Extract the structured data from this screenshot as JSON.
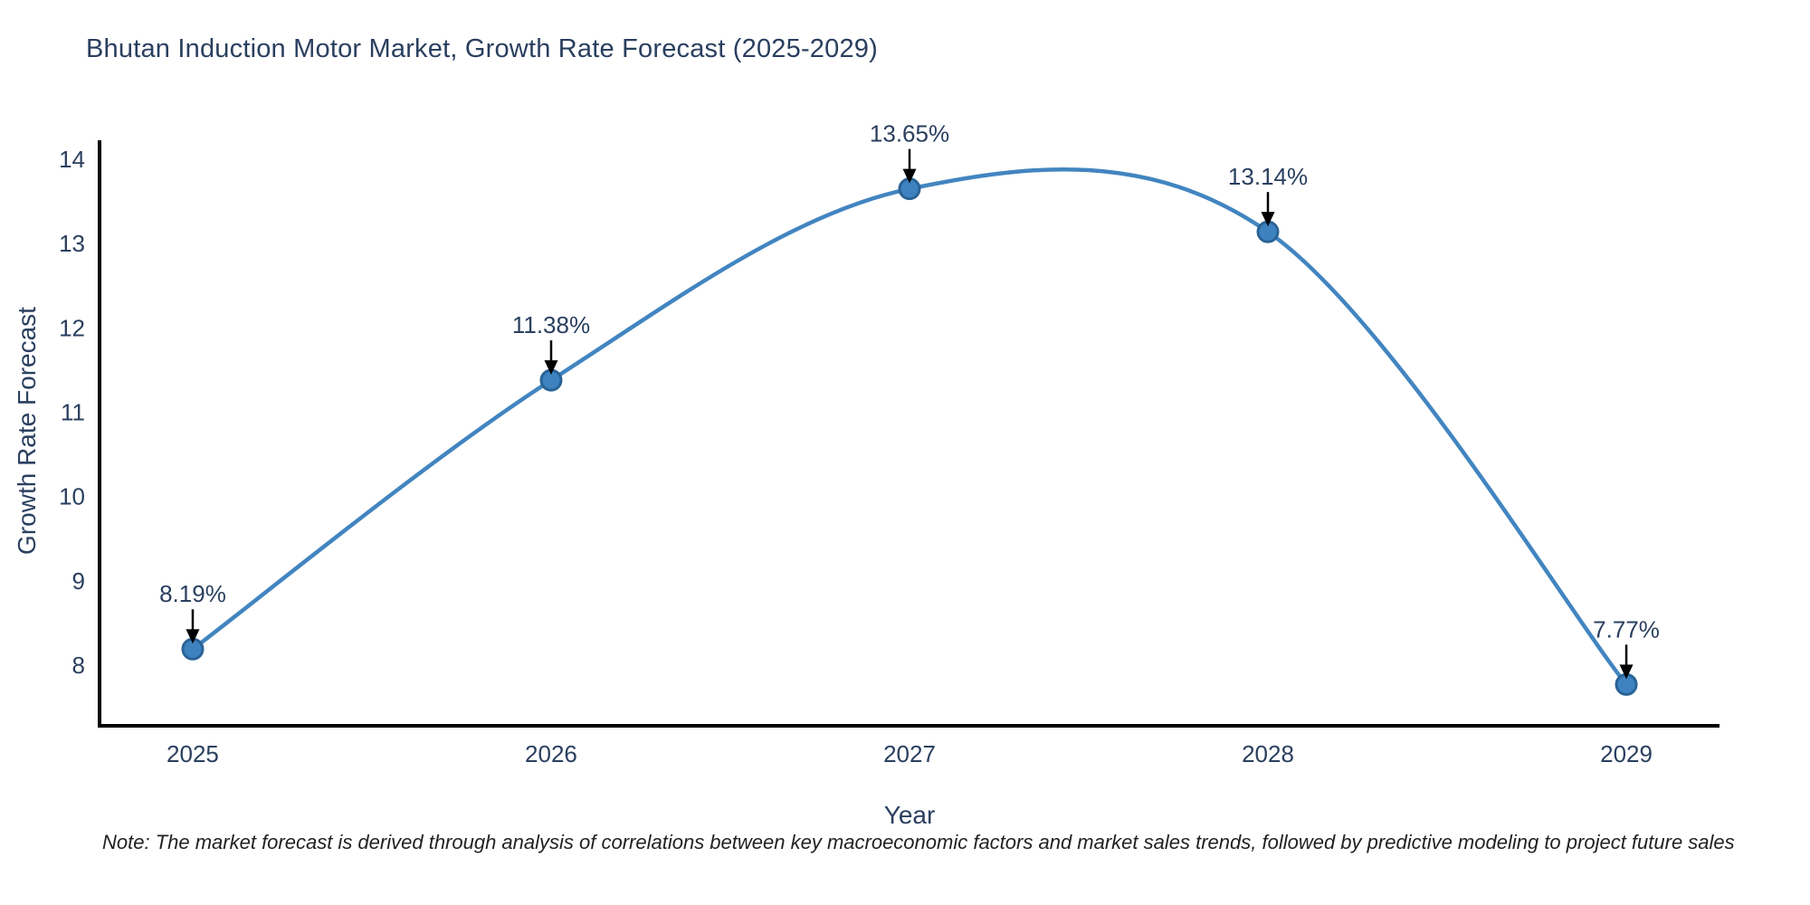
{
  "title": "Bhutan Induction Motor Market, Growth Rate Forecast (2025-2029)",
  "note": "Note: The market forecast is derived through analysis of correlations between key macroeconomic factors and market sales trends, followed by predictive modeling to project future sales",
  "chart_data": {
    "type": "line",
    "line_shape": "spline",
    "title": "Bhutan Induction Motor Market, Growth Rate Forecast (2025-2029)",
    "xlabel": "Year",
    "ylabel": "Growth Rate Forecast",
    "x": [
      2025,
      2026,
      2027,
      2028,
      2029
    ],
    "values": [
      8.19,
      11.38,
      13.65,
      13.14,
      7.77
    ],
    "point_labels": [
      "8.19%",
      "11.38%",
      "13.65%",
      "13.14%",
      "7.77%"
    ],
    "xticks": [
      2025,
      2026,
      2027,
      2028,
      2029
    ],
    "yticks": [
      8,
      9,
      10,
      11,
      12,
      13,
      14
    ],
    "xlim": [
      2024.74,
      2029.26
    ],
    "ylim": [
      7.28,
      14.28
    ],
    "grid": false,
    "legend": "none",
    "annotation_style": "black-arrow-down-to-point"
  },
  "colors": {
    "background": "#ffffff",
    "text": "#2a3f5f",
    "line": "#4285c0",
    "marker_fill": "#3e83c0",
    "marker_edge": "#2a6396",
    "axis_line": "#000000",
    "annotation_arrow": "#000000",
    "annotation_text": "#2a3f5f",
    "note_text": "#222222"
  }
}
